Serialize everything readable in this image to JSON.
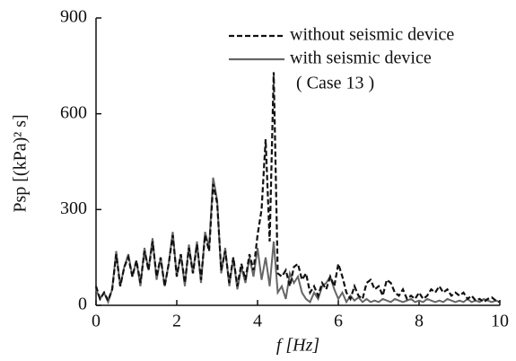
{
  "chart_data": {
    "type": "line",
    "xlabel": "f [Hz]",
    "ylabel": "Psp [(kPa)² s]",
    "annotation": "( Case 13 )",
    "x": [
      0,
      0.1,
      0.2,
      0.3,
      0.4,
      0.5,
      0.6,
      0.7,
      0.8,
      0.9,
      1,
      1.1,
      1.2,
      1.3,
      1.4,
      1.5,
      1.6,
      1.7,
      1.8,
      1.9,
      2,
      2.1,
      2.2,
      2.3,
      2.4,
      2.5,
      2.6,
      2.7,
      2.8,
      2.9,
      3,
      3.1,
      3.2,
      3.3,
      3.4,
      3.5,
      3.6,
      3.7,
      3.8,
      3.9,
      4,
      4.1,
      4.2,
      4.3,
      4.4,
      4.5,
      4.6,
      4.7,
      4.8,
      4.9,
      5,
      5.1,
      5.2,
      5.3,
      5.4,
      5.5,
      5.6,
      5.7,
      5.8,
      5.9,
      6,
      6.1,
      6.2,
      6.3,
      6.4,
      6.5,
      6.6,
      6.7,
      6.8,
      6.9,
      7,
      7.1,
      7.2,
      7.3,
      7.4,
      7.5,
      7.6,
      7.7,
      7.8,
      7.9,
      8,
      8.1,
      8.2,
      8.3,
      8.4,
      8.5,
      8.6,
      8.7,
      8.8,
      8.9,
      9,
      9.1,
      9.2,
      9.3,
      9.4,
      9.5,
      9.6,
      9.7,
      9.8,
      9.9,
      10
    ],
    "series": [
      {
        "name": "without seismic device",
        "color": "#111111",
        "dash": true,
        "values": [
          60,
          20,
          40,
          15,
          50,
          160,
          60,
          120,
          150,
          90,
          140,
          70,
          170,
          110,
          200,
          90,
          150,
          60,
          130,
          220,
          90,
          160,
          70,
          180,
          100,
          190,
          80,
          220,
          170,
          380,
          320,
          110,
          170,
          70,
          150,
          60,
          130,
          80,
          160,
          110,
          220,
          300,
          520,
          200,
          730,
          100,
          90,
          110,
          60,
          120,
          130,
          80,
          100,
          40,
          60,
          30,
          70,
          50,
          90,
          60,
          130,
          90,
          40,
          20,
          60,
          30,
          20,
          70,
          80,
          50,
          60,
          30,
          80,
          70,
          40,
          30,
          50,
          20,
          30,
          20,
          40,
          20,
          30,
          50,
          40,
          60,
          40,
          50,
          30,
          40,
          30,
          40,
          20,
          30,
          15,
          20,
          10,
          20,
          25,
          15,
          10
        ]
      },
      {
        "name": "with seismic device",
        "color": "#666666",
        "dash": false,
        "values": [
          50,
          20,
          40,
          10,
          50,
          170,
          60,
          120,
          160,
          90,
          140,
          60,
          180,
          110,
          210,
          80,
          150,
          60,
          130,
          230,
          90,
          160,
          60,
          190,
          100,
          200,
          70,
          230,
          180,
          400,
          330,
          100,
          180,
          60,
          150,
          50,
          120,
          70,
          150,
          90,
          180,
          80,
          150,
          60,
          200,
          40,
          60,
          20,
          100,
          70,
          90,
          40,
          20,
          10,
          40,
          20,
          60,
          70,
          90,
          50,
          20,
          40,
          10,
          30,
          15,
          25,
          10,
          20,
          10,
          15,
          10,
          20,
          15,
          10,
          20,
          15,
          10,
          15,
          20,
          10,
          15,
          10,
          20,
          15,
          10,
          15,
          10,
          20,
          15,
          10,
          15,
          10,
          20,
          10,
          15,
          10,
          20,
          15,
          10,
          15,
          10
        ]
      }
    ],
    "xlim": [
      0,
      10
    ],
    "xticks": [
      0,
      2,
      4,
      6,
      8,
      10
    ],
    "ylim": [
      0,
      900
    ],
    "yticks": [
      0,
      300,
      600,
      900
    ],
    "legend": "upper right"
  }
}
